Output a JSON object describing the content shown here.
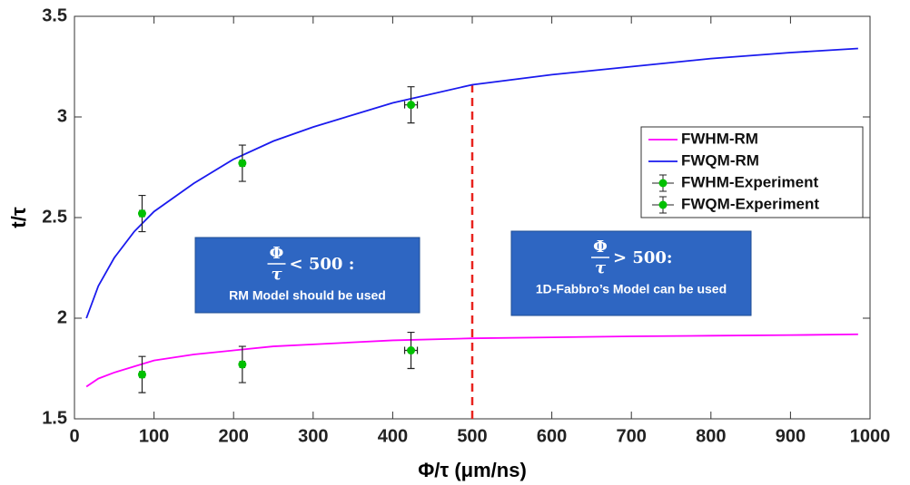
{
  "chart_data": {
    "type": "line",
    "x_label": "Φ/τ (μm/ns)",
    "y_label": "t/τ",
    "xlim": [
      0,
      1000
    ],
    "ylim": [
      1.5,
      3.5
    ],
    "xticks": [
      0,
      100,
      200,
      300,
      400,
      500,
      600,
      700,
      800,
      900,
      1000
    ],
    "yticks": [
      1.5,
      2,
      2.5,
      3,
      3.5
    ],
    "legend": "right",
    "series": [
      {
        "name": "FWHM-RM",
        "color": "#ff00ff",
        "kind": "line",
        "x": [
          15,
          30,
          50,
          75,
          100,
          150,
          200,
          250,
          300,
          400,
          500,
          600,
          700,
          800,
          900,
          985
        ],
        "values": [
          1.66,
          1.7,
          1.73,
          1.76,
          1.79,
          1.82,
          1.84,
          1.86,
          1.87,
          1.89,
          1.9,
          1.905,
          1.91,
          1.913,
          1.916,
          1.92
        ]
      },
      {
        "name": "FWQM-RM",
        "color": "#1a1aee",
        "kind": "line",
        "x": [
          15,
          30,
          50,
          75,
          100,
          150,
          200,
          250,
          300,
          400,
          500,
          600,
          700,
          800,
          900,
          985
        ],
        "values": [
          2.0,
          2.16,
          2.3,
          2.43,
          2.53,
          2.67,
          2.79,
          2.88,
          2.95,
          3.07,
          3.16,
          3.21,
          3.25,
          3.29,
          3.32,
          3.34
        ]
      },
      {
        "name": "FWHM-Experiment",
        "color": "#00c000",
        "kind": "errorbar",
        "x": [
          85,
          211,
          423
        ],
        "values": [
          1.72,
          1.77,
          1.84
        ],
        "yerr": [
          0.09,
          0.09,
          0.09
        ],
        "xerr": [
          3,
          3,
          8
        ]
      },
      {
        "name": "FWQM-Experiment",
        "color": "#00c000",
        "kind": "errorbar",
        "x": [
          85,
          211,
          423
        ],
        "values": [
          2.52,
          2.77,
          3.06
        ],
        "yerr": [
          0.09,
          0.09,
          0.09
        ],
        "xerr": [
          3,
          3,
          8
        ]
      }
    ],
    "vline": {
      "x": 500,
      "y_end": 3.16,
      "color": "#e8231e"
    },
    "annotations": [
      {
        "numerator": "Φ",
        "denominator": "τ",
        "relation": "< 500 :",
        "note": "RM Model should be used"
      },
      {
        "numerator": "Φ",
        "denominator": "τ",
        "relation": "> 500:",
        "note": "1D-Fabbro’s Model can be used"
      }
    ]
  }
}
